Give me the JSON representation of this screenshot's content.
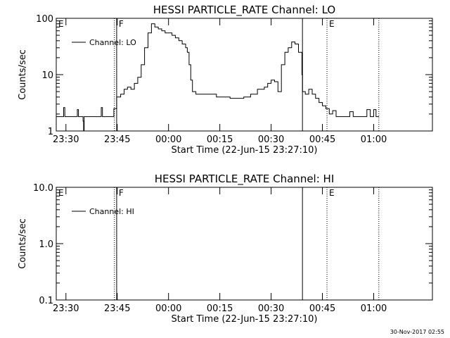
{
  "chart_data": [
    {
      "type": "line",
      "title": "HESSI PARTICLE_RATE Channel: LO",
      "xlabel": "Start Time (22-Jun-15 23:27:10)",
      "ylabel": "Counts/sec",
      "yscale": "log",
      "ylim": [
        1,
        100
      ],
      "y_ticks": [
        "1",
        "10",
        "100"
      ],
      "x_start": "23:27:10",
      "x_ticks": [
        "23:30",
        "23:45",
        "00:00",
        "00:15",
        "00:30",
        "00:45",
        "01:00"
      ],
      "grid": false,
      "legend": {
        "placement": "top-left",
        "entries": [
          "Channel: LO"
        ]
      },
      "markers": [
        {
          "label": "E",
          "time": "23:27:10",
          "style": "dotted"
        },
        {
          "label": "",
          "time": "23:44:10",
          "style": "dotted"
        },
        {
          "label": "F",
          "time": "23:44:50",
          "style": "solid"
        },
        {
          "label": "",
          "time": "00:39:10",
          "style": "solid"
        },
        {
          "label": "E",
          "time": "00:46:20",
          "style": "dotted"
        },
        {
          "label": "",
          "time": "01:01:30",
          "style": "dotted"
        }
      ],
      "series": [
        {
          "name": "Channel: LO",
          "points": [
            [
              "23:27:10",
              1.8
            ],
            [
              "23:29:00",
              1.8
            ],
            [
              "23:29:20",
              2.6
            ],
            [
              "23:29:40",
              1.8
            ],
            [
              "23:33:00",
              1.8
            ],
            [
              "23:33:20",
              2.4
            ],
            [
              "23:33:40",
              1.8
            ],
            [
              "23:34:50",
              1.8
            ],
            [
              "23:35:00",
              1.5
            ],
            [
              "23:35:10",
              1.0
            ],
            [
              "23:35:20",
              1.8
            ],
            [
              "23:40:00",
              1.8
            ],
            [
              "23:40:20",
              2.6
            ],
            [
              "23:40:40",
              1.8
            ],
            [
              "23:43:50",
              1.8
            ],
            [
              "23:44:00",
              2.5
            ],
            [
              "23:44:50",
              4.0
            ],
            [
              "23:46:00",
              4.5
            ],
            [
              "23:47:00",
              5.5
            ],
            [
              "23:48:00",
              6.0
            ],
            [
              "23:49:00",
              5.5
            ],
            [
              "23:50:00",
              7.0
            ],
            [
              "23:51:00",
              9.0
            ],
            [
              "23:52:00",
              15
            ],
            [
              "23:53:00",
              30
            ],
            [
              "23:54:00",
              55
            ],
            [
              "23:55:00",
              80
            ],
            [
              "23:56:00",
              70
            ],
            [
              "23:57:00",
              65
            ],
            [
              "23:58:00",
              60
            ],
            [
              "23:59:00",
              55
            ],
            [
              "00:00:00",
              55
            ],
            [
              "00:01:00",
              50
            ],
            [
              "00:02:00",
              45
            ],
            [
              "00:03:00",
              40
            ],
            [
              "00:04:00",
              35
            ],
            [
              "00:05:00",
              30
            ],
            [
              "00:05:30",
              25
            ],
            [
              "00:06:00",
              15
            ],
            [
              "00:06:30",
              8
            ],
            [
              "00:07:00",
              5
            ],
            [
              "00:08:00",
              4.5
            ],
            [
              "00:10:00",
              4.5
            ],
            [
              "00:12:00",
              4.5
            ],
            [
              "00:14:00",
              4.0
            ],
            [
              "00:16:00",
              4.0
            ],
            [
              "00:18:00",
              3.8
            ],
            [
              "00:20:00",
              3.8
            ],
            [
              "00:22:00",
              4.0
            ],
            [
              "00:24:00",
              4.5
            ],
            [
              "00:26:00",
              5.5
            ],
            [
              "00:28:00",
              6.0
            ],
            [
              "00:29:00",
              7.0
            ],
            [
              "00:30:00",
              8.0
            ],
            [
              "00:31:00",
              7.5
            ],
            [
              "00:32:00",
              5.0
            ],
            [
              "00:33:00",
              15
            ],
            [
              "00:34:00",
              25
            ],
            [
              "00:35:00",
              30
            ],
            [
              "00:36:00",
              38
            ],
            [
              "00:37:00",
              35
            ],
            [
              "00:38:00",
              25
            ],
            [
              "00:39:00",
              10
            ],
            [
              "00:39:10",
              5
            ],
            [
              "00:40:00",
              4.5
            ],
            [
              "00:41:00",
              5.5
            ],
            [
              "00:42:00",
              4.5
            ],
            [
              "00:43:00",
              3.8
            ],
            [
              "00:44:00",
              3.2
            ],
            [
              "00:45:00",
              2.8
            ],
            [
              "00:46:00",
              2.5
            ],
            [
              "00:47:00",
              2.0
            ],
            [
              "00:48:00",
              2.3
            ],
            [
              "00:49:00",
              1.8
            ],
            [
              "00:50:00",
              1.8
            ],
            [
              "00:51:00",
              1.8
            ],
            [
              "00:52:00",
              1.8
            ],
            [
              "00:53:00",
              2.2
            ],
            [
              "00:54:00",
              1.8
            ],
            [
              "00:55:00",
              1.8
            ],
            [
              "00:57:00",
              1.8
            ],
            [
              "00:58:00",
              2.4
            ],
            [
              "00:59:00",
              1.8
            ],
            [
              "01:00:00",
              2.4
            ],
            [
              "01:00:40",
              1.8
            ],
            [
              "01:01:30",
              1.8
            ]
          ]
        }
      ]
    },
    {
      "type": "line",
      "title": "HESSI PARTICLE_RATE Channel: HI",
      "xlabel": "Start Time (22-Jun-15 23:27:10)",
      "ylabel": "Counts/sec",
      "yscale": "log",
      "ylim": [
        0.1,
        10
      ],
      "y_ticks": [
        "0.1",
        "1.0",
        "10.0"
      ],
      "x_start": "23:27:10",
      "x_ticks": [
        "23:30",
        "23:45",
        "00:00",
        "00:15",
        "00:30",
        "00:45",
        "01:00"
      ],
      "grid": false,
      "legend": {
        "placement": "top-left",
        "entries": [
          "Channel: HI"
        ]
      },
      "markers": [
        {
          "label": "E",
          "time": "23:27:10",
          "style": "dotted"
        },
        {
          "label": "",
          "time": "23:44:10",
          "style": "dotted"
        },
        {
          "label": "F",
          "time": "23:44:50",
          "style": "solid"
        },
        {
          "label": "",
          "time": "00:39:10",
          "style": "solid"
        },
        {
          "label": "E",
          "time": "00:46:20",
          "style": "dotted"
        },
        {
          "label": "",
          "time": "01:01:30",
          "style": "dotted"
        }
      ],
      "series": [
        {
          "name": "Channel: HI",
          "points": []
        }
      ]
    }
  ],
  "footer": {
    "timestamp": "30-Nov-2017 02:55"
  }
}
